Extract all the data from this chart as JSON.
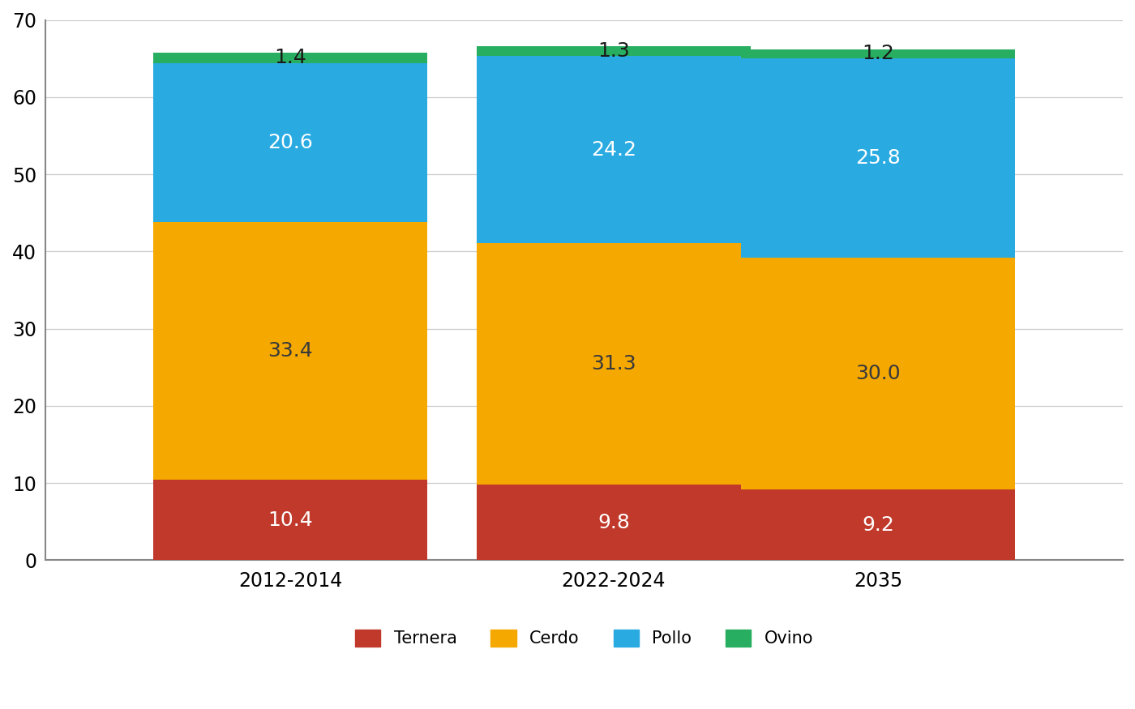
{
  "categories": [
    "2012-2014",
    "2022-2024",
    "2035"
  ],
  "series": {
    "Ternera": [
      10.4,
      9.8,
      9.2
    ],
    "Cerdo": [
      33.4,
      31.3,
      30.0
    ],
    "Pollo": [
      20.6,
      24.2,
      25.8
    ],
    "Ovino": [
      1.4,
      1.3,
      1.2
    ]
  },
  "colors": {
    "Ternera": "#C0392B",
    "Cerdo": "#F5A800",
    "Pollo": "#29ABE2",
    "Ovino": "#27AE60"
  },
  "label_colors": {
    "Ternera": "#FFFFFF",
    "Cerdo": "#3A3A3A",
    "Pollo": "#FFFFFF",
    "Ovino": "#1A1A1A"
  },
  "ylim": [
    0,
    70
  ],
  "yticks": [
    0,
    10,
    20,
    30,
    40,
    50,
    60,
    70
  ],
  "bar_width": 0.28,
  "label_fontsize": 18,
  "tick_fontsize": 17,
  "legend_fontsize": 15,
  "background_color": "#FFFFFF",
  "grid_color": "#CCCCCC",
  "spine_color": "#888888"
}
